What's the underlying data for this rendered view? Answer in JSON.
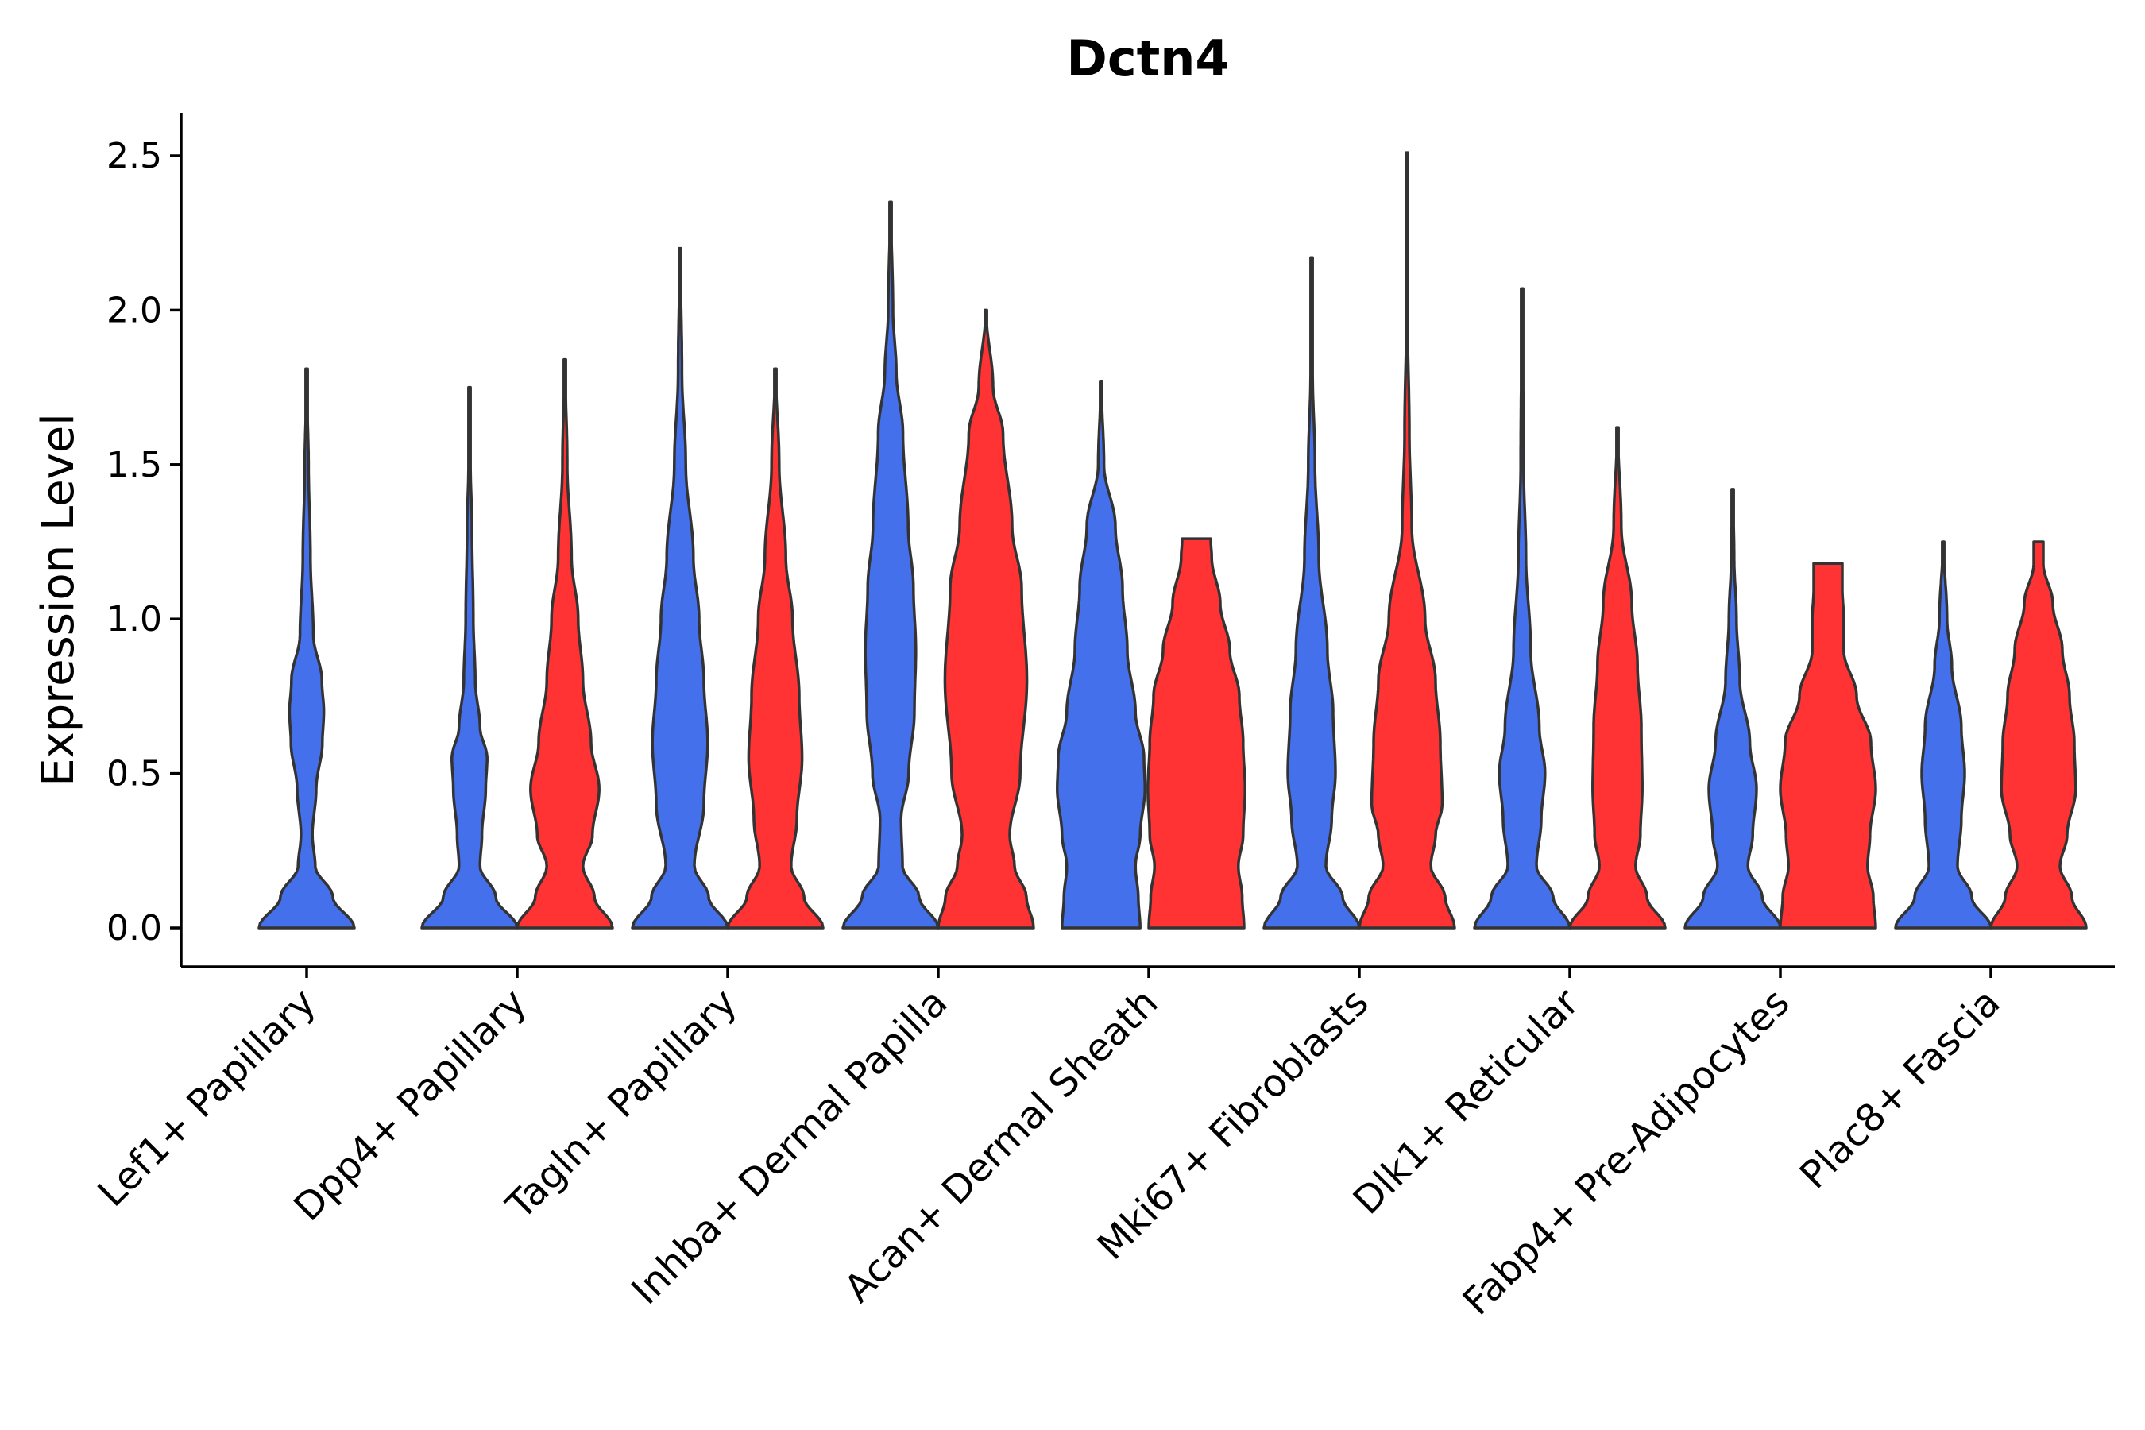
{
  "chart_data": {
    "type": "violin",
    "title": "Dctn4",
    "xlabel": "",
    "ylabel": "Expression Level",
    "ylim": [
      -0.13,
      2.64
    ],
    "yticks": [
      "0.0",
      "0.5",
      "1.0",
      "1.5",
      "2.0",
      "2.5"
    ],
    "ytick_values": [
      0.0,
      0.5,
      1.0,
      1.5,
      2.0,
      2.5
    ],
    "legend": "none",
    "series_colors": {
      "group1": "#4570ec",
      "group2": "#ff3333"
    },
    "categories": [
      {
        "label": "Lef1+ Papillary",
        "violins": [
          {
            "group": "group1",
            "max": 1.81,
            "density": [
              [
                0,
                1.0
              ],
              [
                0.1,
                0.55
              ],
              [
                0.2,
                0.18
              ],
              [
                0.3,
                0.12
              ],
              [
                0.45,
                0.2
              ],
              [
                0.6,
                0.33
              ],
              [
                0.7,
                0.36
              ],
              [
                0.8,
                0.32
              ],
              [
                0.95,
                0.14
              ],
              [
                1.2,
                0.08
              ],
              [
                1.5,
                0.04
              ],
              [
                1.7,
                0.015
              ],
              [
                1.81,
                0.005
              ]
            ]
          }
        ]
      },
      {
        "label": "Dpp4+ Papillary",
        "violins": [
          {
            "group": "group1",
            "max": 1.75,
            "density": [
              [
                0,
                1.0
              ],
              [
                0.1,
                0.55
              ],
              [
                0.2,
                0.22
              ],
              [
                0.3,
                0.26
              ],
              [
                0.45,
                0.34
              ],
              [
                0.55,
                0.37
              ],
              [
                0.65,
                0.22
              ],
              [
                0.8,
                0.12
              ],
              [
                1.0,
                0.08
              ],
              [
                1.3,
                0.05
              ],
              [
                1.5,
                0.02
              ],
              [
                1.75,
                0.005
              ]
            ]
          },
          {
            "group": "group2",
            "max": 1.84,
            "density": [
              [
                0,
                1.0
              ],
              [
                0.1,
                0.62
              ],
              [
                0.2,
                0.38
              ],
              [
                0.3,
                0.58
              ],
              [
                0.45,
                0.72
              ],
              [
                0.6,
                0.55
              ],
              [
                0.8,
                0.38
              ],
              [
                1.0,
                0.28
              ],
              [
                1.2,
                0.14
              ],
              [
                1.5,
                0.05
              ],
              [
                1.84,
                0.005
              ]
            ]
          }
        ]
      },
      {
        "label": "Tagln+ Papillary",
        "violins": [
          {
            "group": "group1",
            "max": 2.2,
            "density": [
              [
                0,
                1.0
              ],
              [
                0.1,
                0.6
              ],
              [
                0.2,
                0.3
              ],
              [
                0.4,
                0.5
              ],
              [
                0.6,
                0.58
              ],
              [
                0.8,
                0.5
              ],
              [
                1.0,
                0.4
              ],
              [
                1.2,
                0.28
              ],
              [
                1.5,
                0.12
              ],
              [
                1.8,
                0.04
              ],
              [
                2.2,
                0.005
              ]
            ]
          },
          {
            "group": "group2",
            "max": 1.81,
            "density": [
              [
                0,
                1.0
              ],
              [
                0.1,
                0.6
              ],
              [
                0.2,
                0.33
              ],
              [
                0.35,
                0.45
              ],
              [
                0.55,
                0.56
              ],
              [
                0.75,
                0.5
              ],
              [
                1.0,
                0.36
              ],
              [
                1.2,
                0.22
              ],
              [
                1.5,
                0.08
              ],
              [
                1.81,
                0.005
              ]
            ]
          }
        ]
      },
      {
        "label": "Inhba+ Dermal Papilla",
        "violins": [
          {
            "group": "group1",
            "max": 2.35,
            "density": [
              [
                0,
                1.0
              ],
              [
                0.1,
                0.6
              ],
              [
                0.2,
                0.25
              ],
              [
                0.35,
                0.22
              ],
              [
                0.5,
                0.38
              ],
              [
                0.7,
                0.5
              ],
              [
                0.9,
                0.53
              ],
              [
                1.1,
                0.48
              ],
              [
                1.3,
                0.37
              ],
              [
                1.6,
                0.26
              ],
              [
                1.8,
                0.12
              ],
              [
                2.0,
                0.05
              ],
              [
                2.35,
                0.005
              ]
            ]
          },
          {
            "group": "group2",
            "max": 2.0,
            "density": [
              [
                0,
                1.0
              ],
              [
                0.1,
                0.85
              ],
              [
                0.2,
                0.6
              ],
              [
                0.3,
                0.5
              ],
              [
                0.5,
                0.72
              ],
              [
                0.8,
                0.86
              ],
              [
                1.1,
                0.75
              ],
              [
                1.3,
                0.55
              ],
              [
                1.6,
                0.36
              ],
              [
                1.75,
                0.15
              ],
              [
                2.0,
                0.005
              ]
            ]
          }
        ]
      },
      {
        "label": "Acan+ Dermal Sheath",
        "violins": [
          {
            "group": "group1",
            "max": 1.77,
            "density": [
              [
                0,
                0.82
              ],
              [
                0.1,
                0.78
              ],
              [
                0.2,
                0.72
              ],
              [
                0.3,
                0.82
              ],
              [
                0.45,
                0.92
              ],
              [
                0.55,
                0.9
              ],
              [
                0.7,
                0.72
              ],
              [
                0.9,
                0.55
              ],
              [
                1.1,
                0.45
              ],
              [
                1.3,
                0.3
              ],
              [
                1.5,
                0.06
              ],
              [
                1.77,
                0.005
              ]
            ]
          },
          {
            "group": "group2",
            "max": 1.26,
            "density": [
              [
                0,
                1.0
              ],
              [
                0.1,
                0.96
              ],
              [
                0.2,
                0.88
              ],
              [
                0.3,
                0.98
              ],
              [
                0.45,
                1.02
              ],
              [
                0.6,
                0.98
              ],
              [
                0.75,
                0.9
              ],
              [
                0.9,
                0.7
              ],
              [
                1.05,
                0.5
              ],
              [
                1.2,
                0.32
              ],
              [
                1.26,
                0.3
              ]
            ]
          }
        ]
      },
      {
        "label": "Mki67+ Fibroblasts",
        "violins": [
          {
            "group": "group1",
            "max": 2.17,
            "density": [
              [
                0,
                1.0
              ],
              [
                0.1,
                0.65
              ],
              [
                0.2,
                0.3
              ],
              [
                0.35,
                0.42
              ],
              [
                0.5,
                0.5
              ],
              [
                0.7,
                0.45
              ],
              [
                0.9,
                0.33
              ],
              [
                1.2,
                0.15
              ],
              [
                1.5,
                0.07
              ],
              [
                1.8,
                0.02
              ],
              [
                2.17,
                0.005
              ]
            ]
          },
          {
            "group": "group2",
            "max": 2.51,
            "density": [
              [
                0,
                1.0
              ],
              [
                0.1,
                0.8
              ],
              [
                0.2,
                0.5
              ],
              [
                0.3,
                0.6
              ],
              [
                0.4,
                0.74
              ],
              [
                0.6,
                0.7
              ],
              [
                0.8,
                0.6
              ],
              [
                1.0,
                0.38
              ],
              [
                1.3,
                0.1
              ],
              [
                1.6,
                0.05
              ],
              [
                2.0,
                0.01
              ],
              [
                2.51,
                0.004
              ]
            ]
          }
        ]
      },
      {
        "label": "Dlk1+ Reticular",
        "violins": [
          {
            "group": "group1",
            "max": 2.07,
            "density": [
              [
                0,
                1.0
              ],
              [
                0.1,
                0.65
              ],
              [
                0.2,
                0.3
              ],
              [
                0.35,
                0.4
              ],
              [
                0.5,
                0.48
              ],
              [
                0.65,
                0.36
              ],
              [
                0.9,
                0.18
              ],
              [
                1.2,
                0.08
              ],
              [
                1.5,
                0.03
              ],
              [
                2.07,
                0.005
              ]
            ]
          },
          {
            "group": "group2",
            "max": 1.62,
            "density": [
              [
                0,
                1.0
              ],
              [
                0.1,
                0.62
              ],
              [
                0.2,
                0.38
              ],
              [
                0.3,
                0.48
              ],
              [
                0.45,
                0.52
              ],
              [
                0.65,
                0.5
              ],
              [
                0.85,
                0.42
              ],
              [
                1.05,
                0.3
              ],
              [
                1.3,
                0.08
              ],
              [
                1.62,
                0.005
              ]
            ]
          }
        ]
      },
      {
        "label": "Fabp4+ Pre-Adipocytes",
        "violins": [
          {
            "group": "group1",
            "max": 1.42,
            "density": [
              [
                0,
                1.0
              ],
              [
                0.1,
                0.62
              ],
              [
                0.2,
                0.32
              ],
              [
                0.3,
                0.42
              ],
              [
                0.45,
                0.5
              ],
              [
                0.6,
                0.36
              ],
              [
                0.8,
                0.15
              ],
              [
                1.0,
                0.08
              ],
              [
                1.2,
                0.03
              ],
              [
                1.42,
                0.005
              ]
            ]
          },
          {
            "group": "group2",
            "max": 1.18,
            "density": [
              [
                0,
                1.0
              ],
              [
                0.1,
                0.95
              ],
              [
                0.2,
                0.83
              ],
              [
                0.3,
                0.88
              ],
              [
                0.45,
                1.0
              ],
              [
                0.6,
                0.9
              ],
              [
                0.75,
                0.6
              ],
              [
                0.9,
                0.33
              ],
              [
                1.0,
                0.33
              ],
              [
                1.1,
                0.3
              ],
              [
                1.18,
                0.3
              ]
            ]
          }
        ]
      },
      {
        "label": "Plac8+ Fascia",
        "violins": [
          {
            "group": "group1",
            "max": 1.25,
            "density": [
              [
                0,
                1.0
              ],
              [
                0.1,
                0.6
              ],
              [
                0.2,
                0.3
              ],
              [
                0.35,
                0.38
              ],
              [
                0.5,
                0.45
              ],
              [
                0.65,
                0.38
              ],
              [
                0.85,
                0.18
              ],
              [
                1.0,
                0.08
              ],
              [
                1.25,
                0.005
              ]
            ]
          },
          {
            "group": "group2",
            "max": 1.25,
            "density": [
              [
                0,
                1.0
              ],
              [
                0.1,
                0.7
              ],
              [
                0.2,
                0.45
              ],
              [
                0.3,
                0.6
              ],
              [
                0.45,
                0.78
              ],
              [
                0.6,
                0.75
              ],
              [
                0.75,
                0.65
              ],
              [
                0.9,
                0.5
              ],
              [
                1.05,
                0.3
              ],
              [
                1.18,
                0.1
              ],
              [
                1.25,
                0.1
              ]
            ]
          }
        ]
      }
    ]
  }
}
